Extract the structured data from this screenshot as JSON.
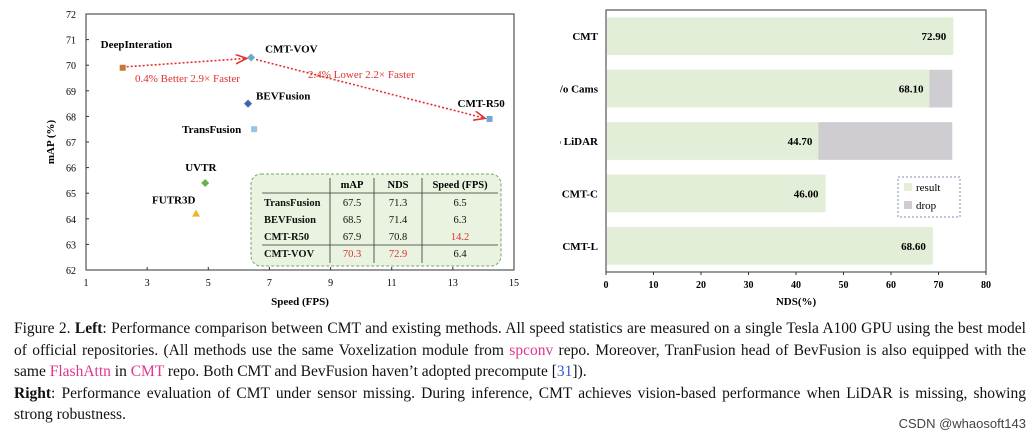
{
  "chart_data": [
    {
      "type": "scatter",
      "xlabel": "Speed (FPS)",
      "ylabel": "mAP (%)",
      "xlim": [
        1,
        15
      ],
      "ylim": [
        62,
        72
      ],
      "xticks": [
        1,
        3,
        5,
        7,
        9,
        11,
        13,
        15
      ],
      "yticks": [
        62,
        63,
        64,
        65,
        66,
        67,
        68,
        69,
        70,
        71,
        72
      ],
      "points": [
        {
          "label": "DeepInteration",
          "x": 2.2,
          "y": 69.9,
          "color": "#c8773a",
          "shape": "square"
        },
        {
          "label": "CMT-VOV",
          "x": 6.4,
          "y": 70.3,
          "color": "#6fa8c9",
          "shape": "diamond"
        },
        {
          "label": "BEVFusion",
          "x": 6.3,
          "y": 68.5,
          "color": "#3d63b3",
          "shape": "diamond"
        },
        {
          "label": "CMT-R50",
          "x": 14.2,
          "y": 67.9,
          "color": "#6fa8dc",
          "shape": "square"
        },
        {
          "label": "TransFusion",
          "x": 6.5,
          "y": 67.5,
          "color": "#9cc3e0",
          "shape": "square"
        },
        {
          "label": "UVTR",
          "x": 4.9,
          "y": 65.4,
          "color": "#6ab04c",
          "shape": "diamond"
        },
        {
          "label": "FUTR3D",
          "x": 4.6,
          "y": 64.2,
          "color": "#f0b429",
          "shape": "triangle"
        }
      ],
      "annotations": [
        {
          "text": "0.4% Better 2.9× Faster",
          "color": "#e03030"
        },
        {
          "text": "2.4% Lower 2.2× Faster",
          "color": "#e03030"
        }
      ],
      "table": {
        "headers": [
          "",
          "mAP",
          "NDS",
          "Speed (FPS)"
        ],
        "rows": [
          [
            "TransFusion",
            "67.5",
            "71.3",
            "6.5"
          ],
          [
            "BEVFusion",
            "68.5",
            "71.4",
            "6.3"
          ],
          [
            "CMT-R50",
            "67.9",
            "70.8",
            "14.2"
          ],
          [
            "CMT-VOV",
            "70.3",
            "72.9",
            "6.4"
          ]
        ],
        "highlight_color": "#e03030"
      }
    },
    {
      "type": "bar",
      "orientation": "horizontal",
      "categories": [
        "CMT",
        "w/o Cams",
        "w/o LiDAR",
        "CMT-C",
        "CMT-L"
      ],
      "series": [
        {
          "name": "result",
          "values": [
            72.9,
            68.1,
            44.7,
            46.0,
            68.6
          ],
          "color": "#e3eed9"
        },
        {
          "name": "drop",
          "values": [
            0,
            4.8,
            28.2,
            0,
            0
          ],
          "color": "#cfcdd1"
        }
      ],
      "value_labels": [
        "72.90",
        "68.10",
        "44.70",
        "46.00",
        "68.60"
      ],
      "xlabel": "NDS(%)",
      "xlim": [
        0,
        80
      ],
      "xticks": [
        0,
        10,
        20,
        30,
        40,
        50,
        60,
        70,
        80
      ],
      "legend_placement": "right-lower"
    }
  ],
  "caption": {
    "label": "Figure 2.",
    "left_label": "Left",
    "left_text_1": ": Performance comparison between CMT and existing methods. All speed statistics are measured on a single Tesla A100 GPU using the best model of official repositories. (All methods use the same Voxelization module from ",
    "spconv": "spconv",
    "left_text_2": " repo. Moreover, TranFusion head of BevFusion is also equipped with the same ",
    "flashattn": "FlashAttn",
    "left_text_3": " in ",
    "cmt": "CMT",
    "left_text_4": " repo. Both CMT and BevFusion haven’t adopted precompute [",
    "ref": "31",
    "left_text_5": "]).",
    "right_label": "Right",
    "right_text": ": Performance evaluation of CMT under sensor missing. During inference, CMT achieves vision-based performance when LiDAR is missing, showing strong robustness."
  },
  "watermark": "CSDN @whaosoft143"
}
